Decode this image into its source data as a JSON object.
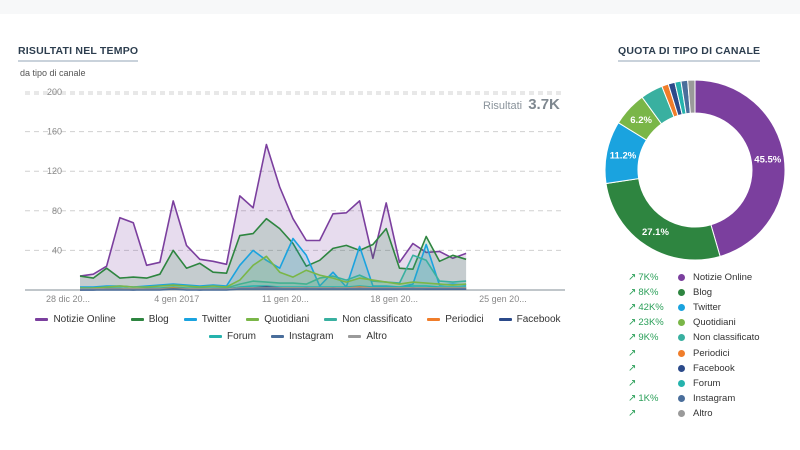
{
  "left_panel": {
    "title": "RISULTATI NEL TEMPO",
    "subtitle": "da tipo di canale",
    "results_label": "Risultati",
    "results_value": "3.7K"
  },
  "right_panel": {
    "title": "QUOTA DI TIPO DI CANALE"
  },
  "chart_data": [
    {
      "type": "area",
      "ylim": [
        0,
        200
      ],
      "yticks": [
        40,
        80,
        120,
        160,
        200
      ],
      "grid": true,
      "legend_position": "bottom",
      "x": [
        1,
        2,
        3,
        4,
        5,
        6,
        7,
        8,
        9,
        10,
        11,
        12,
        13,
        14,
        15,
        16,
        17,
        18,
        19,
        20,
        21,
        22,
        23,
        24,
        25,
        26,
        27,
        28,
        29,
        30,
        31,
        32,
        33,
        34,
        35,
        36
      ],
      "xtick_labels": [
        "28 dic 20...",
        "4 gen 2017",
        "11 gen 20...",
        "18 gen 20...",
        "25 gen 20..."
      ],
      "xtick_positions": [
        4,
        11,
        18,
        25,
        32
      ],
      "series": [
        {
          "name": "Notizie Online",
          "color": "#7b3f9e",
          "values": [
            14,
            16,
            24,
            73,
            68,
            25,
            28,
            90,
            45,
            31,
            29,
            26,
            95,
            83,
            147,
            104,
            72,
            50,
            50,
            77,
            78,
            90,
            32,
            88,
            28,
            47,
            38,
            39,
            32,
            37,
            0,
            0,
            0,
            0,
            0,
            0
          ]
        },
        {
          "name": "Blog",
          "color": "#2e8540",
          "values": [
            14,
            12,
            22,
            12,
            13,
            12,
            16,
            40,
            22,
            27,
            18,
            17,
            55,
            57,
            72,
            62,
            47,
            24,
            30,
            42,
            45,
            40,
            46,
            62,
            22,
            21,
            54,
            29,
            35,
            31,
            0,
            0,
            0,
            0,
            0,
            0
          ]
        },
        {
          "name": "Twitter",
          "color": "#1aa3df",
          "values": [
            3,
            3,
            4,
            4,
            3,
            4,
            5,
            6,
            5,
            4,
            5,
            4,
            25,
            40,
            30,
            22,
            52,
            35,
            4,
            18,
            3,
            44,
            4,
            4,
            3,
            6,
            46,
            5,
            6,
            5,
            0,
            0,
            0,
            0,
            0,
            0
          ]
        },
        {
          "name": "Quotidiani",
          "color": "#7ab648",
          "values": [
            2,
            2,
            3,
            4,
            3,
            3,
            4,
            5,
            4,
            3,
            4,
            3,
            10,
            25,
            34,
            18,
            13,
            20,
            15,
            12,
            8,
            12,
            10,
            8,
            6,
            8,
            7,
            6,
            5,
            6,
            0,
            0,
            0,
            0,
            0,
            0
          ]
        },
        {
          "name": "Non classificato",
          "color": "#39b0a0",
          "values": [
            1,
            1,
            2,
            2,
            1,
            2,
            2,
            3,
            2,
            2,
            2,
            2,
            6,
            9,
            8,
            7,
            7,
            6,
            12,
            14,
            10,
            15,
            9,
            8,
            7,
            35,
            30,
            9,
            8,
            9,
            0,
            0,
            0,
            0,
            0,
            0
          ]
        },
        {
          "name": "Periodici",
          "color": "#f07d2a",
          "values": [
            0,
            1,
            1,
            1,
            1,
            1,
            1,
            2,
            1,
            1,
            1,
            1,
            2,
            2,
            3,
            2,
            2,
            2,
            2,
            2,
            2,
            3,
            2,
            2,
            2,
            2,
            2,
            2,
            2,
            2,
            0,
            0,
            0,
            0,
            0,
            0
          ]
        },
        {
          "name": "Facebook",
          "color": "#2b4a8a",
          "values": [
            0,
            0,
            1,
            1,
            0,
            1,
            1,
            1,
            1,
            0,
            1,
            1,
            2,
            2,
            3,
            2,
            1,
            2,
            1,
            2,
            1,
            2,
            1,
            1,
            1,
            2,
            1,
            1,
            1,
            1,
            0,
            0,
            0,
            0,
            0,
            0
          ]
        },
        {
          "name": "Forum",
          "color": "#25b3ad",
          "values": [
            1,
            1,
            1,
            1,
            1,
            1,
            1,
            2,
            1,
            1,
            1,
            1,
            3,
            4,
            4,
            3,
            3,
            3,
            3,
            3,
            3,
            4,
            3,
            3,
            3,
            4,
            4,
            3,
            3,
            3,
            0,
            0,
            0,
            0,
            0,
            0
          ]
        },
        {
          "name": "Instagram",
          "color": "#4a6e9b",
          "values": [
            0,
            0,
            0,
            0,
            0,
            0,
            0,
            1,
            0,
            0,
            0,
            0,
            1,
            1,
            1,
            1,
            1,
            1,
            1,
            1,
            1,
            1,
            1,
            1,
            1,
            1,
            1,
            1,
            1,
            1,
            0,
            0,
            0,
            0,
            0,
            0
          ]
        },
        {
          "name": "Altro",
          "color": "#9a9a9a",
          "values": [
            1,
            1,
            1,
            1,
            1,
            1,
            1,
            1,
            1,
            1,
            1,
            1,
            2,
            2,
            2,
            2,
            2,
            2,
            2,
            2,
            2,
            2,
            2,
            2,
            2,
            2,
            2,
            2,
            2,
            2,
            0,
            0,
            0,
            0,
            0,
            0
          ]
        }
      ]
    },
    {
      "type": "pie",
      "donut": true,
      "slices": [
        {
          "name": "Notizie Online",
          "value": 45.5,
          "label": "45.5%",
          "color": "#7b3f9e",
          "trend": "7K%"
        },
        {
          "name": "Blog",
          "value": 27.1,
          "label": "27.1%",
          "color": "#2e8540",
          "trend": "8K%"
        },
        {
          "name": "Twitter",
          "value": 11.2,
          "label": "11.2%",
          "color": "#1aa3df",
          "trend": "42K%"
        },
        {
          "name": "Quotidiani",
          "value": 6.2,
          "label": "6.2%",
          "color": "#7ab648",
          "trend": "23K%"
        },
        {
          "name": "Non classificato",
          "value": 4.0,
          "label": "",
          "color": "#39b0a0",
          "trend": "9K%"
        },
        {
          "name": "Periodici",
          "value": 1.2,
          "label": "",
          "color": "#f07d2a",
          "trend": ""
        },
        {
          "name": "Facebook",
          "value": 1.2,
          "label": "",
          "color": "#2b4a8a",
          "trend": ""
        },
        {
          "name": "Forum",
          "value": 1.1,
          "label": "",
          "color": "#25b3ad",
          "trend": ""
        },
        {
          "name": "Instagram",
          "value": 1.2,
          "label": "",
          "color": "#4a6e9b",
          "trend": "1K%"
        },
        {
          "name": "Altro",
          "value": 1.3,
          "label": "",
          "color": "#9a9a9a",
          "trend": ""
        }
      ]
    }
  ]
}
